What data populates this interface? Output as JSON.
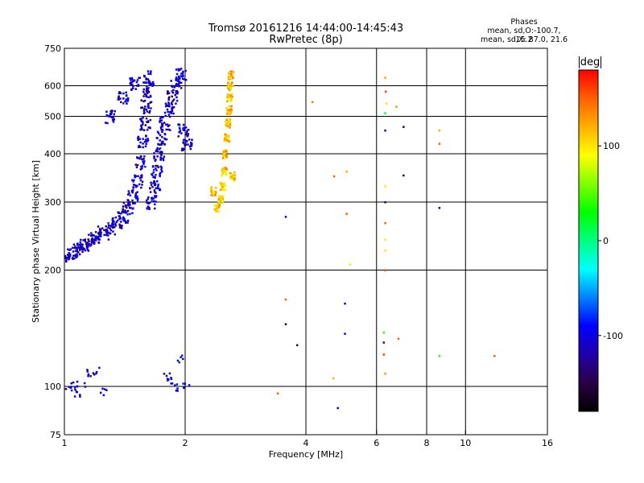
{
  "header": {
    "title_line1": "Tromsø 20161216 14:44:00-14:45:43",
    "title_line2": "RwPretec (8p)",
    "phases_title": "Phases",
    "phases_line1": "mean, sd,O:-100.7, 15.2",
    "phases_line2": "mean, sd,X:  87.0, 21.6"
  },
  "colorbar": {
    "unit": "deg",
    "ticks": [
      100,
      0,
      -100
    ],
    "range": [
      -180,
      180
    ],
    "colors": [
      "#000000",
      "#2a0044",
      "#2000a8",
      "#0000ff",
      "#0080ff",
      "#00ffff",
      "#00ff80",
      "#00ff00",
      "#80ff00",
      "#ffff00",
      "#ffb000",
      "#ff6000",
      "#ff0000"
    ]
  },
  "chart_data": {
    "type": "scatter",
    "title": "Tromsø 20161216 14:44:00-14:45:43",
    "subtitle": "RwPretec (8p)",
    "xlabel": "Frequency [MHz]",
    "ylabel": "Stationary phase Virtual Height [km]",
    "x_scale": "log",
    "y_scale": "log",
    "xlim": [
      1,
      16
    ],
    "ylim": [
      75,
      750
    ],
    "x_ticks": [
      1,
      2,
      4,
      6,
      8,
      10,
      16
    ],
    "y_ticks": [
      75,
      100,
      200,
      300,
      400,
      500,
      600,
      750
    ],
    "grid_x": [
      2,
      4,
      6,
      8,
      10
    ],
    "grid_y": [
      100,
      200,
      300,
      400,
      500,
      600
    ],
    "o_trace": [
      [
        1.0,
        218
      ],
      [
        1.05,
        222
      ],
      [
        1.08,
        226
      ],
      [
        1.12,
        232
      ],
      [
        1.16,
        238
      ],
      [
        1.2,
        244
      ],
      [
        1.25,
        250
      ],
      [
        1.3,
        258
      ],
      [
        1.35,
        266
      ],
      [
        1.4,
        276
      ],
      [
        1.44,
        290
      ],
      [
        1.48,
        310
      ],
      [
        1.52,
        340
      ],
      [
        1.55,
        380
      ],
      [
        1.57,
        430
      ],
      [
        1.59,
        480
      ],
      [
        1.6,
        530
      ],
      [
        1.61,
        580
      ],
      [
        1.62,
        630
      ],
      [
        1.65,
        300
      ],
      [
        1.68,
        330
      ],
      [
        1.7,
        360
      ],
      [
        1.72,
        400
      ],
      [
        1.75,
        440
      ],
      [
        1.78,
        480
      ],
      [
        1.82,
        520
      ],
      [
        1.86,
        560
      ],
      [
        1.9,
        600
      ],
      [
        1.95,
        640
      ],
      [
        1.98,
        460
      ],
      [
        2.02,
        420
      ],
      [
        1.3,
        500
      ],
      [
        1.4,
        560
      ],
      [
        1.5,
        610
      ]
    ],
    "o_lower": [
      [
        1.02,
        98
      ],
      [
        1.05,
        100
      ],
      [
        1.08,
        96
      ],
      [
        1.1,
        102
      ],
      [
        1.15,
        108
      ],
      [
        1.2,
        110
      ],
      [
        1.25,
        97
      ],
      [
        1.8,
        106
      ],
      [
        1.85,
        103
      ],
      [
        1.9,
        99
      ],
      [
        1.95,
        118
      ],
      [
        2.02,
        100
      ]
    ],
    "x_trace": [
      [
        2.4,
        290
      ],
      [
        2.45,
        305
      ],
      [
        2.48,
        330
      ],
      [
        2.5,
        360
      ],
      [
        2.52,
        400
      ],
      [
        2.54,
        440
      ],
      [
        2.56,
        480
      ],
      [
        2.57,
        520
      ],
      [
        2.58,
        560
      ],
      [
        2.59,
        600
      ],
      [
        2.6,
        640
      ],
      [
        2.35,
        320
      ],
      [
        2.62,
        350
      ]
    ],
    "scatter_points": [
      [
        3.56,
        275,
        -110
      ],
      [
        4.15,
        545,
        140
      ],
      [
        4.7,
        350,
        150
      ],
      [
        5.05,
        360,
        120
      ],
      [
        5.05,
        280,
        150
      ],
      [
        5.15,
        207,
        100
      ],
      [
        3.56,
        168,
        150
      ],
      [
        3.56,
        145,
        -150
      ],
      [
        3.8,
        128,
        -150
      ],
      [
        5.0,
        164,
        -110
      ],
      [
        5.0,
        137,
        -110
      ],
      [
        4.68,
        105,
        120
      ],
      [
        4.8,
        88,
        -110
      ],
      [
        3.4,
        96,
        150
      ],
      [
        6.3,
        630,
        130
      ],
      [
        6.32,
        580,
        160
      ],
      [
        6.35,
        540,
        100
      ],
      [
        6.3,
        510,
        20
      ],
      [
        6.3,
        460,
        -110
      ],
      [
        6.3,
        330,
        100
      ],
      [
        6.3,
        300,
        -130
      ],
      [
        6.3,
        265,
        150
      ],
      [
        6.3,
        240,
        100
      ],
      [
        6.3,
        225,
        100
      ],
      [
        6.3,
        200,
        160
      ],
      [
        6.25,
        138,
        40
      ],
      [
        6.25,
        130,
        -130
      ],
      [
        6.25,
        121,
        160
      ],
      [
        6.3,
        108,
        130
      ],
      [
        7.0,
        470,
        -130
      ],
      [
        7.0,
        352,
        -130
      ],
      [
        6.8,
        133,
        150
      ],
      [
        8.6,
        460,
        120
      ],
      [
        8.6,
        425,
        150
      ],
      [
        8.6,
        290,
        -130
      ],
      [
        8.6,
        120,
        40
      ],
      [
        11.8,
        120,
        150
      ],
      [
        6.72,
        530,
        130
      ]
    ]
  }
}
